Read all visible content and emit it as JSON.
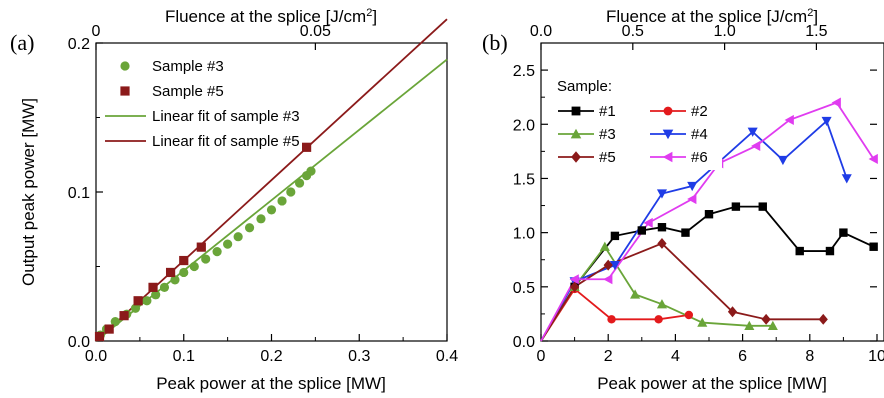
{
  "panels": {
    "a": {
      "label": "(a)"
    },
    "b": {
      "label": "(b)"
    }
  },
  "chart_data": [
    {
      "panel": "(a)",
      "type": "scatter",
      "xlabel": "Peak power at the splice [MW]",
      "ylabel": "Output peak power [MW]",
      "top_xlabel_prefix": "Fluence at the splice [J/cm",
      "top_xlabel_sup": "2",
      "top_xlabel_suffix": "]",
      "xlim": [
        0,
        0.4
      ],
      "ylim": [
        0,
        0.2
      ],
      "xticks": [
        "0.0",
        "0.1",
        "0.2",
        "0.3",
        "0.4"
      ],
      "yticks": [
        "0.0",
        "0.1",
        "0.2"
      ],
      "top_xlim": [
        0,
        0.08
      ],
      "top_xticks": [
        "0",
        "0.05"
      ],
      "legend": "top-left",
      "series": [
        {
          "name": "Sample #3",
          "marker": "circle",
          "color": "#6aa539",
          "points": [
            [
              0.005,
              0.004
            ],
            [
              0.012,
              0.008
            ],
            [
              0.022,
              0.013
            ],
            [
              0.035,
              0.018
            ],
            [
              0.045,
              0.022
            ],
            [
              0.058,
              0.027
            ],
            [
              0.068,
              0.031
            ],
            [
              0.078,
              0.036
            ],
            [
              0.09,
              0.041
            ],
            [
              0.1,
              0.046
            ],
            [
              0.112,
              0.05
            ],
            [
              0.125,
              0.055
            ],
            [
              0.138,
              0.06
            ],
            [
              0.15,
              0.065
            ],
            [
              0.162,
              0.07
            ],
            [
              0.175,
              0.076
            ],
            [
              0.188,
              0.082
            ],
            [
              0.2,
              0.088
            ],
            [
              0.212,
              0.094
            ],
            [
              0.222,
              0.1
            ],
            [
              0.232,
              0.106
            ],
            [
              0.24,
              0.111
            ],
            [
              0.245,
              0.114
            ]
          ]
        },
        {
          "name": "Sample #5",
          "marker": "square",
          "color": "#8b1a1a",
          "points": [
            [
              0.004,
              0.003
            ],
            [
              0.015,
              0.008
            ],
            [
              0.032,
              0.017
            ],
            [
              0.048,
              0.027
            ],
            [
              0.065,
              0.036
            ],
            [
              0.085,
              0.046
            ],
            [
              0.1,
              0.054
            ],
            [
              0.12,
              0.063
            ],
            [
              0.24,
              0.13
            ]
          ]
        },
        {
          "name": "Linear fit of sample #3",
          "kind": "line",
          "color": "#6aa539",
          "points": [
            [
              0,
              0
            ],
            [
              0.4,
              0.189
            ]
          ]
        },
        {
          "name": "Linear fit of sample #5",
          "kind": "line",
          "color": "#8b1a1a",
          "points": [
            [
              0,
              0
            ],
            [
              0.4,
              0.216
            ]
          ]
        }
      ]
    },
    {
      "panel": "(b)",
      "type": "line",
      "xlabel": "Peak power at the splice [MW]",
      "ylabel": "",
      "top_xlabel_prefix": "Fluence at the splice [J/cm",
      "top_xlabel_sup": "2",
      "top_xlabel_suffix": "]",
      "xlim": [
        0,
        10
      ],
      "ylim": [
        0,
        2.75
      ],
      "xticks": [
        "0",
        "2",
        "4",
        "6",
        "8",
        "10"
      ],
      "yticks": [
        "0.0",
        "0.5",
        "1.0",
        "1.5",
        "2.0",
        "2.5"
      ],
      "top_xlim": [
        0,
        1.83
      ],
      "top_xticks": [
        "0.0",
        "0.5",
        "1.0",
        "1.5"
      ],
      "legend_title": "Sample:",
      "legend": "top-left",
      "series": [
        {
          "name": "#1",
          "color": "#000000",
          "marker": "square",
          "points": [
            [
              0,
              0
            ],
            [
              1.0,
              0.5
            ],
            [
              2.2,
              0.97
            ],
            [
              3.0,
              1.02
            ],
            [
              3.6,
              1.05
            ],
            [
              4.3,
              1.0
            ],
            [
              5.0,
              1.17
            ],
            [
              5.8,
              1.24
            ],
            [
              6.6,
              1.24
            ],
            [
              7.7,
              0.83
            ],
            [
              8.6,
              0.83
            ],
            [
              9.0,
              1.0
            ],
            [
              9.9,
              0.87
            ]
          ]
        },
        {
          "name": "#2",
          "color": "#e31a1c",
          "marker": "circle",
          "points": [
            [
              0,
              0
            ],
            [
              1.0,
              0.48
            ],
            [
              2.1,
              0.2
            ],
            [
              3.5,
              0.2
            ],
            [
              4.4,
              0.24
            ]
          ]
        },
        {
          "name": "#3",
          "color": "#6aa539",
          "marker": "triangle-up",
          "points": [
            [
              0,
              0
            ],
            [
              1.0,
              0.5
            ],
            [
              1.9,
              0.87
            ],
            [
              2.8,
              0.43
            ],
            [
              3.6,
              0.34
            ],
            [
              4.8,
              0.17
            ],
            [
              6.2,
              0.14
            ],
            [
              6.9,
              0.14
            ]
          ]
        },
        {
          "name": "#4",
          "color": "#1f3ce6",
          "marker": "triangle-down",
          "points": [
            [
              0,
              0
            ],
            [
              1.0,
              0.55
            ],
            [
              2.2,
              0.7
            ],
            [
              3.6,
              1.36
            ],
            [
              4.5,
              1.43
            ],
            [
              6.3,
              1.93
            ],
            [
              7.2,
              1.67
            ],
            [
              8.5,
              2.03
            ],
            [
              9.1,
              1.5
            ]
          ]
        },
        {
          "name": "#5",
          "color": "#8b1a1a",
          "marker": "diamond",
          "points": [
            [
              0,
              0
            ],
            [
              1.0,
              0.5
            ],
            [
              2.0,
              0.7
            ],
            [
              3.6,
              0.9
            ],
            [
              5.7,
              0.27
            ],
            [
              6.7,
              0.2
            ],
            [
              8.4,
              0.2
            ]
          ]
        },
        {
          "name": "#6",
          "color": "#e03cf0",
          "marker": "triangle-left",
          "points": [
            [
              0,
              0
            ],
            [
              1.0,
              0.57
            ],
            [
              2.0,
              0.57
            ],
            [
              3.2,
              1.09
            ],
            [
              4.5,
              1.31
            ],
            [
              5.3,
              1.64
            ],
            [
              6.4,
              1.8
            ],
            [
              7.4,
              2.04
            ],
            [
              8.8,
              2.2
            ],
            [
              9.9,
              1.68
            ]
          ]
        }
      ]
    }
  ]
}
